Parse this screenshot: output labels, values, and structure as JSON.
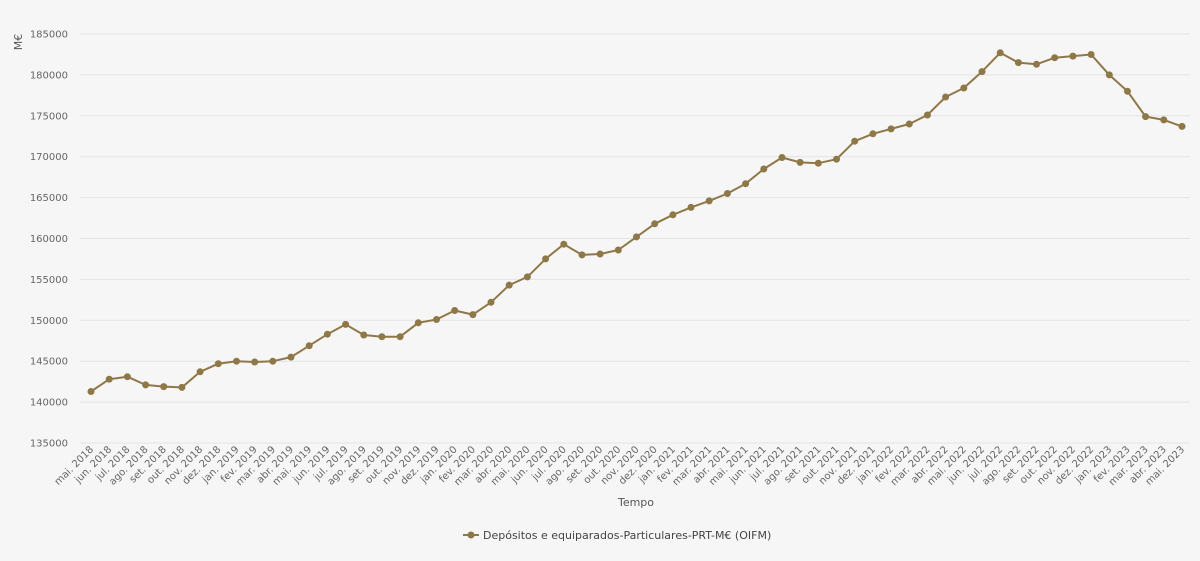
{
  "chart_data": {
    "type": "line",
    "title": "",
    "xlabel": "Tempo",
    "ylabel": "M€",
    "ylim": [
      135000,
      185000
    ],
    "yticks": [
      135000,
      140000,
      145000,
      150000,
      155000,
      160000,
      165000,
      170000,
      175000,
      180000,
      185000
    ],
    "grid": true,
    "legend_position": "bottom-center",
    "categories": [
      "mai. 2018",
      "jun. 2018",
      "jul. 2018",
      "ago. 2018",
      "set. 2018",
      "out. 2018",
      "nov. 2018",
      "dez. 2018",
      "jan. 2019",
      "fev. 2019",
      "mar. 2019",
      "abr. 2019",
      "mai. 2019",
      "jun. 2019",
      "jul. 2019",
      "ago. 2019",
      "set. 2019",
      "out. 2019",
      "nov. 2019",
      "dez. 2019",
      "jan. 2020",
      "fev. 2020",
      "mar. 2020",
      "abr. 2020",
      "mai. 2020",
      "jun. 2020",
      "jul. 2020",
      "ago. 2020",
      "set. 2020",
      "out. 2020",
      "nov. 2020",
      "dez. 2020",
      "jan. 2021",
      "fev. 2021",
      "mar. 2021",
      "abr. 2021",
      "mai. 2021",
      "jun. 2021",
      "jul. 2021",
      "ago. 2021",
      "set. 2021",
      "out. 2021",
      "nov. 2021",
      "dez. 2021",
      "jan. 2022",
      "fev. 2022",
      "mar. 2022",
      "abr. 2022",
      "mai. 2022",
      "jun. 2022",
      "jul. 2022",
      "ago. 2022",
      "set. 2022",
      "out. 2022",
      "nov. 2022",
      "dez. 2022",
      "jan. 2023",
      "fev. 2023",
      "mar. 2023",
      "abr. 2023",
      "mai. 2023"
    ],
    "series": [
      {
        "name": "Depósitos e equiparados-Particulares-PRT-M€ (OIFM)",
        "color": "#8f7848",
        "values": [
          141300,
          142800,
          143100,
          142100,
          141900,
          141800,
          143700,
          144700,
          145000,
          144900,
          145000,
          145500,
          146900,
          148300,
          149500,
          148200,
          148000,
          148000,
          149700,
          150100,
          151200,
          150700,
          152200,
          154300,
          155300,
          157500,
          159300,
          158000,
          158100,
          158600,
          160200,
          161800,
          162900,
          163800,
          164600,
          165500,
          166700,
          168500,
          169900,
          169300,
          169200,
          169700,
          171900,
          172800,
          173400,
          174000,
          175100,
          177300,
          178400,
          180400,
          182700,
          181500,
          181300,
          182100,
          182300,
          182500,
          180000,
          178000,
          174900,
          174500,
          173700
        ]
      }
    ]
  }
}
